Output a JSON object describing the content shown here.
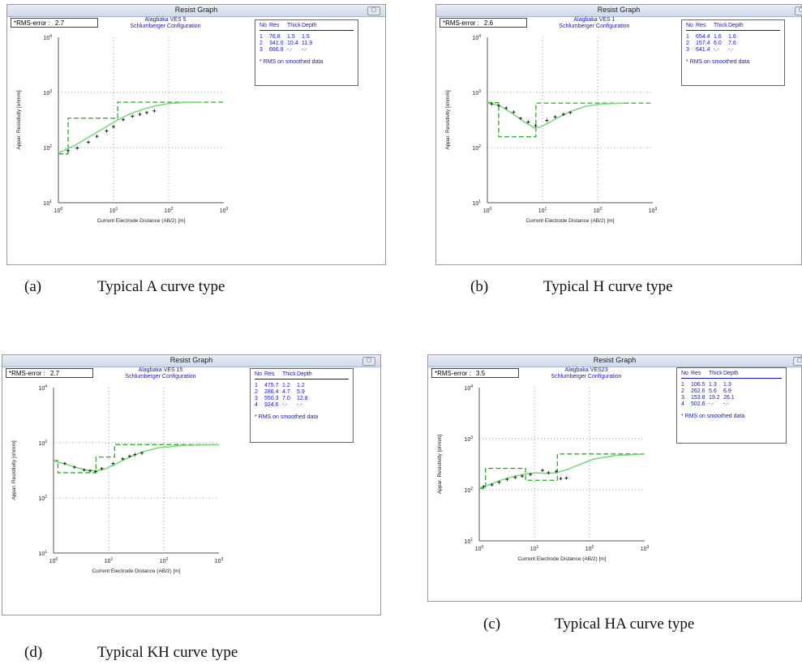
{
  "panels": [
    {
      "id": "a",
      "window_title": "Resist Graph",
      "rms_label": "*RMS-error :",
      "rms_value": "2.7",
      "chart_title_line1": "Alagbaka VES 5",
      "chart_title_line2": "Schlumberger Configuration",
      "ylabel": "Appar. Resistivity [ohmm]",
      "xlabel": "Current Electrode Distance (AB/2) [m]",
      "caption_tag": "(a)",
      "caption_text": "Typical A curve type",
      "legend": {
        "headers": [
          "No",
          "Res",
          "Thick",
          "Depth"
        ],
        "rows": [
          [
            "1",
            "76.8",
            "1.5",
            "1.5"
          ],
          [
            "2",
            "341.0",
            "10.4",
            "11.9"
          ],
          [
            "3",
            "666.9",
            "-.-",
            "-.-"
          ]
        ],
        "note": "* RMS on smoothed data"
      }
    },
    {
      "id": "b",
      "window_title": "Resist Graph",
      "rms_label": "*RMS-error :",
      "rms_value": "2.6",
      "chart_title_line1": "Alagbaka VES 1",
      "chart_title_line2": "Schlumberger Configuration",
      "ylabel": "Appar. Resistivity [ohmm]",
      "xlabel": "Current Electrode Distance (AB/2) [m]",
      "caption_tag": "(b)",
      "caption_text": "Typical H curve type",
      "legend": {
        "headers": [
          "No",
          "Res",
          "Thick",
          "Depth"
        ],
        "rows": [
          [
            "1",
            "654.4",
            "1.6",
            "1.6"
          ],
          [
            "2",
            "157.4",
            "6.0",
            "7.6"
          ],
          [
            "3",
            "641.4",
            "-.-",
            "-.-"
          ]
        ],
        "note": "* RMS on smoothed data"
      }
    },
    {
      "id": "d",
      "window_title": "Resist Graph",
      "rms_label": "*RMS-error :",
      "rms_value": "2.7",
      "chart_title_line1": "Alagbaka VES 15",
      "chart_title_line2": "Schlumberger Configuration",
      "ylabel": "Appar. Resistivity [ohmm]",
      "xlabel": "Current Electrode Distance (AB/2) [m]",
      "caption_tag": "(d)",
      "caption_text": "Typical KH curve type",
      "legend": {
        "headers": [
          "No",
          "Res",
          "Thick",
          "Depth"
        ],
        "rows": [
          [
            "1",
            "475.7",
            "1.2",
            "1.2"
          ],
          [
            "2",
            "286.4",
            "4.7",
            "5.9"
          ],
          [
            "3",
            "550.3",
            "7.0",
            "12.8"
          ],
          [
            "4",
            "924.6",
            "-.-",
            "-.-"
          ]
        ],
        "note": "* RMS on smoothed data"
      }
    },
    {
      "id": "c",
      "window_title": "Resist Graph",
      "rms_label": "*RMS-error :",
      "rms_value": "3.5",
      "chart_title_line1": "Alagbaka VES23",
      "chart_title_line2": "Schlumberger Configuration",
      "ylabel": "Appar. Resistivity [ohmm]",
      "xlabel": "Current Electrode Distance (AB/2) [m]",
      "caption_tag": "(c)",
      "caption_text": "Typical HA curve type",
      "legend": {
        "headers": [
          "No",
          "Res",
          "Thick",
          "Depth"
        ],
        "rows": [
          [
            "1",
            "106.5",
            "1.3",
            "1.3"
          ],
          [
            "2",
            "262.6",
            "5.6",
            "6.9"
          ],
          [
            "3",
            "153.8",
            "19.2",
            "26.1"
          ],
          [
            "4",
            "502.6",
            "-.-",
            "-.-"
          ]
        ],
        "note": "* RMS on smoothed data"
      }
    }
  ],
  "colors": {
    "model": "#2faa2f",
    "curve": "#7ed87e",
    "points": "#222222",
    "legend_text": "#1818a8",
    "grid": "#9a9a9a"
  },
  "chart_data": [
    {
      "type": "line",
      "log_x": true,
      "log_y": true,
      "xlim": [
        1,
        1000
      ],
      "ylim": [
        10,
        10000
      ],
      "xticks": [
        "10^0",
        "10^1",
        "10^2",
        "10^3"
      ],
      "yticks": [
        "10^1",
        "10^2",
        "10^3",
        "10^4"
      ],
      "grid": true,
      "model": {
        "res": [
          76.8,
          341.0,
          666.9
        ],
        "depth": [
          1.5,
          11.9
        ]
      },
      "curve": {
        "x": [
          1,
          1.3,
          2,
          3,
          5,
          8,
          12,
          20,
          35,
          60,
          100,
          200,
          400
        ],
        "y": [
          80,
          90,
          110,
          140,
          190,
          250,
          320,
          410,
          500,
          575,
          630,
          660,
          666
        ]
      },
      "points": {
        "x": [
          1.5,
          2.2,
          3.5,
          5,
          7.5,
          10,
          15,
          22,
          30,
          40,
          55
        ],
        "y": [
          88,
          98,
          125,
          160,
          200,
          240,
          320,
          370,
          400,
          430,
          460
        ]
      }
    },
    {
      "type": "line",
      "log_x": true,
      "log_y": true,
      "xlim": [
        1,
        1000
      ],
      "ylim": [
        10,
        10000
      ],
      "xticks": [
        "10^0",
        "10^1",
        "10^2",
        "10^3"
      ],
      "yticks": [
        "10^1",
        "10^2",
        "10^3",
        "10^4"
      ],
      "grid": true,
      "model": {
        "res": [
          654.4,
          157.4,
          641.4
        ],
        "depth": [
          1.6,
          7.6
        ]
      },
      "curve": {
        "x": [
          1,
          1.5,
          2,
          3,
          5,
          7,
          9,
          12,
          18,
          30,
          60,
          120,
          300
        ],
        "y": [
          640,
          600,
          520,
          400,
          280,
          230,
          235,
          270,
          340,
          440,
          560,
          620,
          640
        ]
      },
      "points": {
        "x": [
          1.2,
          1.6,
          2.2,
          3,
          4,
          5.5,
          7.5,
          12,
          17,
          24,
          32
        ],
        "y": [
          620,
          580,
          520,
          440,
          340,
          290,
          250,
          310,
          360,
          400,
          430
        ]
      }
    },
    {
      "type": "line",
      "log_x": true,
      "log_y": true,
      "xlim": [
        1,
        1000
      ],
      "ylim": [
        10,
        10000
      ],
      "xticks": [
        "10^0",
        "10^1",
        "10^2",
        "10^3"
      ],
      "yticks": [
        "10^1",
        "10^2",
        "10^3",
        "10^4"
      ],
      "grid": true,
      "model": {
        "res": [
          475.7,
          286.4,
          550.3,
          924.6
        ],
        "depth": [
          1.2,
          5.9,
          12.8
        ]
      },
      "curve": {
        "x": [
          1,
          1.5,
          2.5,
          4,
          6,
          9,
          14,
          22,
          40,
          80,
          200,
          500,
          1000
        ],
        "y": [
          470,
          420,
          360,
          320,
          310,
          340,
          420,
          530,
          680,
          810,
          890,
          915,
          920
        ]
      },
      "points": {
        "x": [
          1.6,
          2.4,
          3.6,
          4.6,
          5.8,
          7.5,
          12,
          18,
          24,
          30,
          40
        ],
        "y": [
          420,
          360,
          320,
          310,
          300,
          340,
          420,
          510,
          570,
          610,
          650
        ]
      }
    },
    {
      "type": "line",
      "log_x": true,
      "log_y": true,
      "xlim": [
        1,
        1000
      ],
      "ylim": [
        10,
        10000
      ],
      "xticks": [
        "10^0",
        "10^1",
        "10^2",
        "10^3"
      ],
      "yticks": [
        "10^1",
        "10^2",
        "10^3",
        "10^4"
      ],
      "grid": true,
      "model": {
        "res": [
          106.5,
          262.6,
          153.8,
          502.6
        ],
        "depth": [
          1.3,
          6.9,
          26.1
        ]
      },
      "curve": {
        "x": [
          1,
          1.5,
          2.5,
          4,
          7,
          11,
          16,
          25,
          40,
          70,
          120,
          300,
          1000
        ],
        "y": [
          108,
          125,
          155,
          180,
          205,
          215,
          210,
          215,
          250,
          320,
          400,
          470,
          500
        ]
      },
      "points": {
        "x": [
          1.2,
          1.7,
          2.3,
          3.2,
          4.5,
          6,
          8.5,
          14,
          18,
          25,
          30,
          38
        ],
        "y": [
          115,
          125,
          140,
          160,
          175,
          185,
          200,
          240,
          215,
          230,
          165,
          170
        ]
      }
    }
  ]
}
